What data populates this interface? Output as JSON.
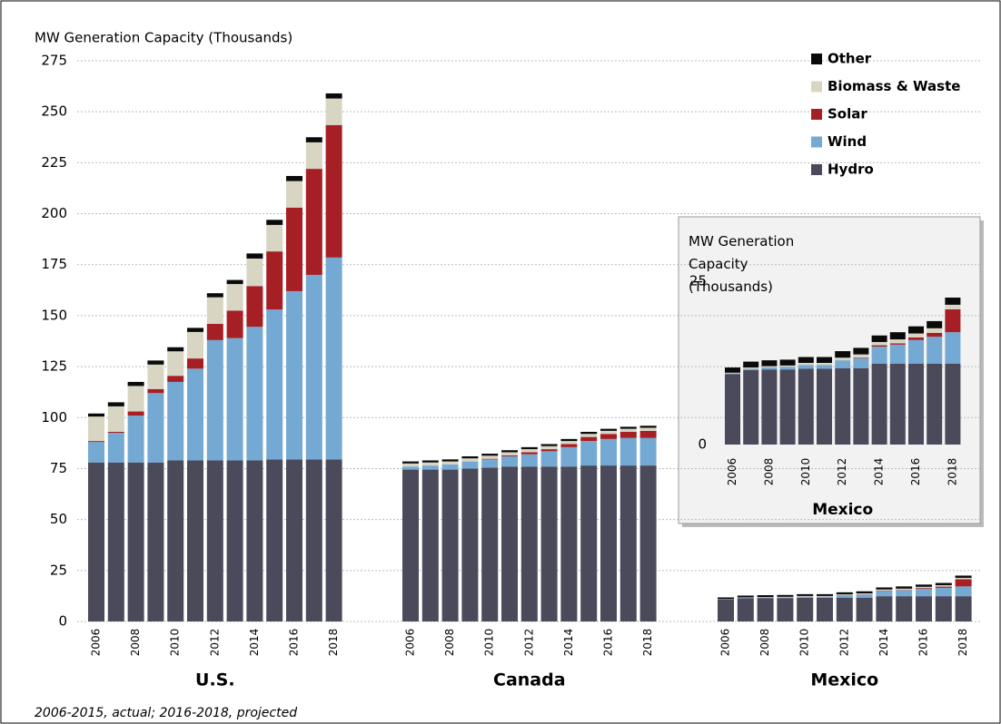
{
  "chart_data": [
    {
      "type": "bar",
      "stacked": true,
      "y_label": "MW Generation Capacity (Thousands)",
      "note": "2006-2015, actual; 2016-2018, projected",
      "groups": [
        "U.S.",
        "Canada",
        "Mexico"
      ],
      "categories": [
        "2006",
        null,
        "2008",
        null,
        "2010",
        null,
        "2012",
        null,
        "2014",
        null,
        "2016",
        null,
        "2018"
      ],
      "ylim": [
        0,
        275
      ],
      "yticks": [
        0,
        25,
        50,
        75,
        100,
        125,
        150,
        175,
        200,
        225,
        250,
        275
      ],
      "grid": true,
      "legend": "top-right",
      "series": [
        {
          "name": "Hydro",
          "color": "#4a4a5a",
          "values": [
            [
              78,
              78,
              78,
              78,
              79,
              79,
              79,
              79,
              79,
              79.5,
              79.5,
              79.5,
              79.5
            ],
            [
              74.5,
              74.5,
              74.5,
              75,
              75.5,
              76,
              76,
              76,
              76,
              76.5,
              76.5,
              76.5,
              76.5
            ],
            [
              10.8,
              11.4,
              11.5,
              11.5,
              11.6,
              11.6,
              11.7,
              11.7,
              12.4,
              12.4,
              12.4,
              12.4,
              12.4
            ]
          ]
        },
        {
          "name": "Wind",
          "color": "#74a9d4",
          "values": [
            [
              10,
              14.5,
              23,
              34,
              38.5,
              45,
              59,
              60,
              65.5,
              73.5,
              82.5,
              90.5,
              99
            ],
            [
              1.5,
              2,
              2.5,
              3.5,
              4,
              5,
              6,
              7.5,
              9.5,
              12,
              13,
              13.5,
              13.5
            ],
            [
              0.1,
              0.2,
              0.3,
              0.4,
              0.6,
              0.6,
              1.2,
              1.5,
              2.6,
              2.9,
              3.6,
              4.1,
              4.8
            ]
          ]
        },
        {
          "name": "Solar",
          "color": "#a51f24",
          "values": [
            [
              0.5,
              0.5,
              2,
              2,
              3,
              5,
              8,
              13.5,
              20,
              28.5,
              41,
              52,
              65
            ],
            [
              0,
              0,
              0,
              0,
              0.3,
              0.5,
              1,
              1,
              1.5,
              2,
              2.5,
              3,
              3.5
            ],
            [
              0,
              0,
              0,
              0,
              0,
              0,
              0,
              0.1,
              0.2,
              0.2,
              0.4,
              0.6,
              3.5
            ]
          ]
        },
        {
          "name": "Biomass & Waste",
          "color": "#d8d5c3",
          "values": [
            [
              12,
              12.5,
              12.5,
              12,
              12,
              13,
              13,
              13,
              13.5,
              13,
              13,
              13,
              13
            ],
            [
              1.5,
              1.5,
              1.5,
              1.5,
              1.5,
              1.5,
              1.5,
              1.5,
              1.5,
              1.5,
              1.5,
              1.5,
              1.5
            ],
            [
              0.1,
              0.2,
              0.2,
              0.2,
              0.3,
              0.3,
              0.4,
              0.5,
              0.5,
              0.6,
              0.6,
              0.7,
              0.7
            ]
          ]
        },
        {
          "name": "Other",
          "color": "#0a0a0a",
          "values": [
            [
              1.5,
              2,
              2,
              2,
              2,
              2,
              2,
              2,
              2.5,
              2.5,
              2.5,
              2.5,
              2.5
            ],
            [
              1,
              1,
              1,
              1,
              1,
              1,
              1,
              1,
              1,
              1,
              1,
              1,
              1
            ],
            [
              0.8,
              0.9,
              0.9,
              0.9,
              0.9,
              0.9,
              1,
              1,
              1,
              1.1,
              1.1,
              1.1,
              1.1
            ]
          ]
        }
      ]
    },
    {
      "type": "bar",
      "stacked": true,
      "y_label": "MW Generation Capacity (Thousands)",
      "groups": [
        "Mexico"
      ],
      "categories": [
        "2006",
        null,
        "2008",
        null,
        "2010",
        null,
        "2012",
        null,
        "2014",
        null,
        "2016",
        null,
        "2018"
      ],
      "ylim": [
        0,
        25
      ],
      "yticks": [
        0,
        25
      ],
      "grid": false,
      "series": [
        {
          "name": "Hydro",
          "color": "#4a4a5a",
          "values": [
            [
              10.8,
              11.4,
              11.5,
              11.5,
              11.6,
              11.6,
              11.7,
              11.7,
              12.4,
              12.4,
              12.4,
              12.4,
              12.4
            ]
          ]
        },
        {
          "name": "Wind",
          "color": "#74a9d4",
          "values": [
            [
              0.1,
              0.2,
              0.3,
              0.4,
              0.6,
              0.6,
              1.2,
              1.5,
              2.6,
              2.9,
              3.6,
              4.1,
              4.8
            ]
          ]
        },
        {
          "name": "Solar",
          "color": "#a51f24",
          "values": [
            [
              0,
              0,
              0,
              0,
              0,
              0,
              0,
              0.1,
              0.2,
              0.2,
              0.4,
              0.6,
              3.5
            ]
          ]
        },
        {
          "name": "Biomass & Waste",
          "color": "#d8d5c3",
          "values": [
            [
              0.1,
              0.2,
              0.2,
              0.2,
              0.3,
              0.3,
              0.4,
              0.5,
              0.5,
              0.6,
              0.6,
              0.7,
              0.7
            ]
          ]
        },
        {
          "name": "Other",
          "color": "#0a0a0a",
          "values": [
            [
              0.8,
              0.9,
              0.9,
              0.9,
              0.9,
              0.9,
              1,
              1,
              1,
              1.1,
              1.1,
              1.1,
              1.1
            ]
          ]
        }
      ]
    }
  ]
}
